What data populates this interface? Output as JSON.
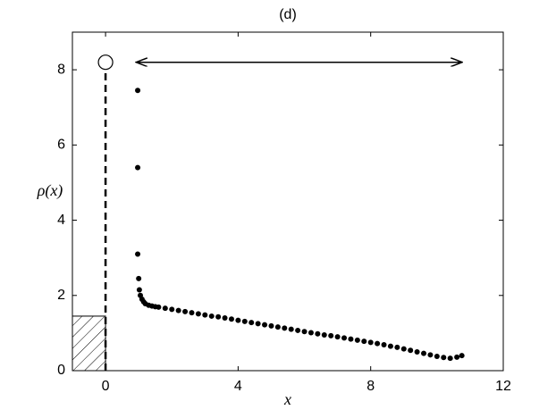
{
  "chart_data": {
    "type": "scatter",
    "title": "(d)",
    "x_label": "x",
    "y_label": "ρ(x)",
    "xlim": [
      -1,
      12
    ],
    "ylim": [
      0,
      9
    ],
    "xticks": [
      0,
      4,
      8,
      12
    ],
    "yticks": [
      0,
      2,
      4,
      6,
      8
    ],
    "grid": false,
    "series": [
      {
        "color": "#000000",
        "x": [
          0.97,
          0.97,
          0.97,
          1.0,
          1.02,
          1.05,
          1.1,
          1.15,
          1.2,
          1.3,
          1.4,
          1.5,
          1.6,
          1.8,
          2.0,
          2.2,
          2.4,
          2.6,
          2.8,
          3.0,
          3.2,
          3.4,
          3.6,
          3.8,
          4.0,
          4.2,
          4.4,
          4.6,
          4.8,
          5.0,
          5.2,
          5.4,
          5.6,
          5.8,
          6.0,
          6.2,
          6.4,
          6.6,
          6.8,
          7.0,
          7.2,
          7.4,
          7.6,
          7.8,
          8.0,
          8.2,
          8.4,
          8.6,
          8.8,
          9.0,
          9.2,
          9.4,
          9.6,
          9.8,
          10.0,
          10.2,
          10.4,
          10.6,
          10.75
        ],
        "values": [
          7.45,
          5.4,
          3.1,
          2.45,
          2.15,
          2.0,
          1.9,
          1.83,
          1.78,
          1.74,
          1.72,
          1.7,
          1.69,
          1.66,
          1.63,
          1.6,
          1.57,
          1.54,
          1.51,
          1.48,
          1.45,
          1.43,
          1.4,
          1.37,
          1.34,
          1.31,
          1.28,
          1.25,
          1.22,
          1.19,
          1.16,
          1.13,
          1.1,
          1.07,
          1.04,
          1.01,
          0.98,
          0.95,
          0.93,
          0.9,
          0.87,
          0.84,
          0.81,
          0.78,
          0.75,
          0.72,
          0.69,
          0.65,
          0.62,
          0.58,
          0.54,
          0.5,
          0.46,
          0.42,
          0.38,
          0.35,
          0.33,
          0.36,
          0.4
        ]
      }
    ],
    "delta": {
      "x": 0,
      "value": 8.2
    },
    "block": {
      "xlim": [
        -1,
        0
      ],
      "value": 1.45
    },
    "arrow": {
      "xlim": [
        0.92,
        10.76
      ],
      "value": 8.2
    }
  }
}
